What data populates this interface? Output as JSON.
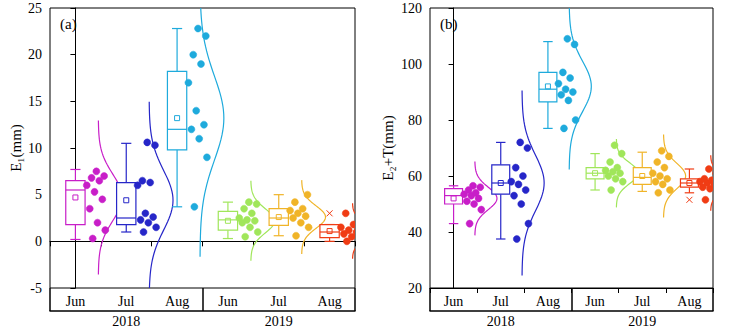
{
  "chart_data": [
    {
      "type": "box",
      "label": "(a)",
      "y_label": "E₁(mm)",
      "groups": [
        {
          "label": "2018",
          "categories": [
            "Jun",
            "Jul",
            "Aug"
          ]
        },
        {
          "label": "2019",
          "categories": [
            "Jun",
            "Jul",
            "Aug"
          ]
        }
      ],
      "ylim": [
        -5,
        25
      ],
      "yticks": [
        -5,
        0,
        5,
        10,
        15,
        20,
        25
      ],
      "grid": false,
      "series": [
        {
          "color": "#c81ec8",
          "values": [
            0.3,
            1.2,
            2.0,
            3.5,
            4.5,
            5.3,
            6.0,
            6.5,
            6.8,
            7.0,
            7.5
          ],
          "box": [
            0.2,
            1.8,
            5.5,
            6.5,
            7.7
          ],
          "mean": 4.7,
          "sd": 2.5,
          "outliers": []
        },
        {
          "color": "#2626c8",
          "values": [
            1.0,
            1.5,
            2.0,
            2.3,
            2.6,
            3.0,
            6.0,
            6.3,
            6.5,
            10.3,
            10.6
          ],
          "box": [
            1.0,
            1.8,
            2.5,
            6.3,
            10.5
          ],
          "mean": 4.4,
          "sd": 3.2,
          "outliers": []
        },
        {
          "color": "#1eaadc",
          "values": [
            3.7,
            9.0,
            11.0,
            12.0,
            12.5,
            14.0,
            17.0,
            19.0,
            20.0,
            22.0,
            22.8
          ],
          "box": [
            3.7,
            9.8,
            12.0,
            18.2,
            22.8
          ],
          "mean": 13.2,
          "sd": 4.5,
          "outliers": []
        },
        {
          "color": "#a0e65a",
          "values": [
            0.5,
            1.0,
            1.5,
            2.0,
            2.2,
            2.3,
            2.5,
            3.0,
            3.5,
            4.0,
            4.2
          ],
          "box": [
            0.3,
            1.2,
            2.3,
            3.2,
            4.2
          ],
          "mean": 2.2,
          "sd": 1.3,
          "outliers": []
        },
        {
          "color": "#f0b428",
          "values": [
            0.6,
            1.5,
            2.0,
            2.5,
            2.7,
            3.0,
            3.3,
            3.5,
            4.2,
            5.0
          ],
          "box": [
            0.6,
            1.7,
            2.5,
            3.5,
            5.0
          ],
          "mean": 2.6,
          "sd": 1.2,
          "outliers": []
        },
        {
          "color": "#f03c14",
          "values": [
            0.0,
            0.3,
            0.5,
            0.8,
            1.0,
            1.2,
            1.5,
            1.8,
            3.0
          ],
          "box": [
            0.0,
            0.4,
            1.0,
            1.8,
            1.8
          ],
          "mean": 1.1,
          "sd": 0.9,
          "outliers": [
            3.0
          ]
        }
      ]
    },
    {
      "type": "box",
      "label": "(b)",
      "y_label": "E₂+T(mm)",
      "groups": [
        {
          "label": "2018",
          "categories": [
            "Jun",
            "Jul",
            "Aug"
          ]
        },
        {
          "label": "2019",
          "categories": [
            "Jun",
            "Jul",
            "Aug"
          ]
        }
      ],
      "ylim": [
        20,
        120
      ],
      "yticks": [
        20,
        40,
        60,
        80,
        100,
        120
      ],
      "grid": false,
      "series": [
        {
          "color": "#c81ec8",
          "values": [
            43,
            48,
            50,
            51,
            52,
            53,
            53.5,
            54,
            55,
            56,
            56.5
          ],
          "box": [
            43,
            50,
            53,
            55.5,
            56.5
          ],
          "mean": 52,
          "sd": 4,
          "outliers": []
        },
        {
          "color": "#2626c8",
          "values": [
            37.5,
            43,
            50,
            53,
            55,
            57,
            58,
            60,
            63,
            70,
            72
          ],
          "box": [
            37.5,
            53.5,
            57.5,
            64,
            72
          ],
          "mean": 57.5,
          "sd": 10,
          "outliers": []
        },
        {
          "color": "#1eaadc",
          "values": [
            77,
            80,
            87,
            89,
            90,
            91,
            93,
            95,
            97,
            107,
            109
          ],
          "box": [
            77,
            86.5,
            91,
            97,
            108
          ],
          "mean": 92,
          "sd": 9,
          "outliers": []
        },
        {
          "color": "#a0e65a",
          "values": [
            55,
            58,
            59,
            60,
            61,
            61.5,
            62,
            63,
            65,
            68,
            71
          ],
          "box": [
            55,
            59,
            61,
            63,
            68
          ],
          "mean": 61,
          "sd": 3.7,
          "outliers": []
        },
        {
          "color": "#f0b428",
          "values": [
            54,
            55,
            57,
            58,
            59,
            60,
            61,
            63,
            65,
            67,
            69
          ],
          "box": [
            54.5,
            57,
            59.5,
            63,
            68.5
          ],
          "mean": 60,
          "sd": 4.5,
          "outliers": []
        },
        {
          "color": "#f03c14",
          "values": [
            51.5,
            54,
            55.5,
            56,
            57,
            57.5,
            58,
            58.5,
            59,
            61,
            62.5
          ],
          "box": [
            54,
            56,
            57.5,
            59,
            62.5
          ],
          "mean": 57.5,
          "sd": 3,
          "outliers": [
            51.5
          ]
        }
      ]
    }
  ]
}
